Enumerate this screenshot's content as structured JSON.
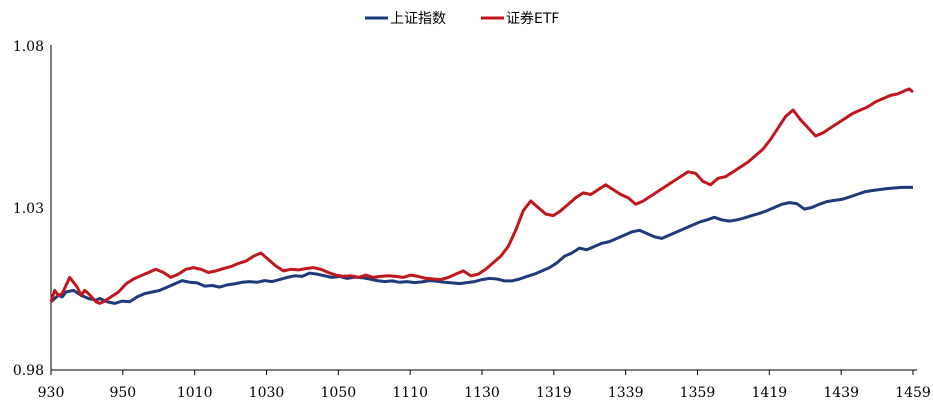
{
  "chart_data": {
    "type": "line",
    "title": "",
    "xlabel": "",
    "ylabel": "",
    "ylim": [
      0.98,
      1.08
    ],
    "y_ticks": [
      "0.98",
      "1.03",
      "1.08"
    ],
    "y_tick_values": [
      0.98,
      1.03,
      1.08
    ],
    "x_ticks": [
      "930",
      "950",
      "1010",
      "1030",
      "1050",
      "1110",
      "1130",
      "1319",
      "1339",
      "1359",
      "1419",
      "1439",
      "1459"
    ],
    "grid": false,
    "legend": "top-center",
    "series": [
      {
        "name": "上证指数",
        "color": "#1f3a7a",
        "values": [
          [
            0,
            1.001
          ],
          [
            2,
            1.003
          ],
          [
            3,
            1.0025
          ],
          [
            4,
            1.004
          ],
          [
            6,
            1.0045
          ],
          [
            8,
            1.003
          ],
          [
            10,
            1.002
          ],
          [
            12,
            1.0015
          ],
          [
            13,
            1.002
          ],
          [
            15,
            1.001
          ],
          [
            17,
            1.0005
          ],
          [
            19,
            1.0012
          ],
          [
            21,
            1.001
          ],
          [
            23,
            1.0025
          ],
          [
            25,
            1.0035
          ],
          [
            27,
            1.004
          ],
          [
            29,
            1.0045
          ],
          [
            31,
            1.0055
          ],
          [
            33,
            1.0065
          ],
          [
            35,
            1.0075
          ],
          [
            37,
            1.007
          ],
          [
            39,
            1.0068
          ],
          [
            41,
            1.0058
          ],
          [
            43,
            1.006
          ],
          [
            45,
            1.0055
          ],
          [
            47,
            1.0062
          ],
          [
            49,
            1.0065
          ],
          [
            51,
            1.007
          ],
          [
            53,
            1.0072
          ],
          [
            55,
            1.007
          ],
          [
            57,
            1.0075
          ],
          [
            59,
            1.0072
          ],
          [
            61,
            1.0078
          ],
          [
            63,
            1.0085
          ],
          [
            65,
            1.009
          ],
          [
            67,
            1.0088
          ],
          [
            69,
            1.0098
          ],
          [
            71,
            1.0095
          ],
          [
            73,
            1.009
          ],
          [
            75,
            1.0085
          ],
          [
            77,
            1.0088
          ],
          [
            79,
            1.0082
          ],
          [
            81,
            1.0086
          ],
          [
            83,
            1.0084
          ],
          [
            85,
            1.008
          ],
          [
            87,
            1.0075
          ],
          [
            89,
            1.0072
          ],
          [
            91,
            1.0074
          ],
          [
            93,
            1.007
          ],
          [
            95,
            1.0072
          ],
          [
            97,
            1.0069
          ],
          [
            99,
            1.0071
          ],
          [
            101,
            1.0075
          ],
          [
            103,
            1.0073
          ],
          [
            105,
            1.007
          ],
          [
            107,
            1.0068
          ],
          [
            109,
            1.0066
          ],
          [
            111,
            1.0069
          ],
          [
            113,
            1.0072
          ],
          [
            115,
            1.0078
          ],
          [
            117,
            1.0082
          ],
          [
            119,
            1.008
          ],
          [
            121,
            1.0074
          ],
          [
            123,
            1.0074
          ],
          [
            125,
            1.008
          ],
          [
            127,
            1.0088
          ],
          [
            129,
            1.0095
          ],
          [
            131,
            1.0105
          ],
          [
            133,
            1.0115
          ],
          [
            135,
            1.013
          ],
          [
            137,
            1.015
          ],
          [
            139,
            1.016
          ],
          [
            141,
            1.0175
          ],
          [
            143,
            1.017
          ],
          [
            145,
            1.018
          ],
          [
            147,
            1.019
          ],
          [
            149,
            1.0195
          ],
          [
            151,
            1.0205
          ],
          [
            153,
            1.0215
          ],
          [
            155,
            1.0225
          ],
          [
            157,
            1.023
          ],
          [
            159,
            1.022
          ],
          [
            161,
            1.021
          ],
          [
            163,
            1.0205
          ],
          [
            165,
            1.0215
          ],
          [
            167,
            1.0225
          ],
          [
            169,
            1.0235
          ],
          [
            171,
            1.0245
          ],
          [
            173,
            1.0255
          ],
          [
            175,
            1.0262
          ],
          [
            177,
            1.027
          ],
          [
            179,
            1.0262
          ],
          [
            181,
            1.0258
          ],
          [
            183,
            1.0262
          ],
          [
            185,
            1.0268
          ],
          [
            187,
            1.0275
          ],
          [
            189,
            1.0282
          ],
          [
            191,
            1.029
          ],
          [
            193,
            1.03
          ],
          [
            195,
            1.031
          ],
          [
            197,
            1.0315
          ],
          [
            199,
            1.0312
          ],
          [
            201,
            1.0295
          ],
          [
            203,
            1.03
          ],
          [
            205,
            1.031
          ],
          [
            207,
            1.0318
          ],
          [
            209,
            1.0322
          ],
          [
            211,
            1.0325
          ],
          [
            213,
            1.0332
          ],
          [
            215,
            1.034
          ],
          [
            217,
            1.0348
          ],
          [
            219,
            1.0352
          ],
          [
            221,
            1.0355
          ],
          [
            223,
            1.0358
          ],
          [
            225,
            1.036
          ],
          [
            227,
            1.0362
          ],
          [
            229,
            1.0362
          ],
          [
            230,
            1.0362
          ]
        ]
      },
      {
        "name": "证券ETF",
        "color": "#c0161d",
        "values": [
          [
            0,
            1.001
          ],
          [
            1,
            1.0045
          ],
          [
            2,
            1.003
          ],
          [
            3,
            1.0035
          ],
          [
            4,
            1.006
          ],
          [
            5,
            1.0085
          ],
          [
            6,
            1.007
          ],
          [
            7,
            1.0055
          ],
          [
            8,
            1.003
          ],
          [
            9,
            1.0045
          ],
          [
            10,
            1.0035
          ],
          [
            12,
            1.001
          ],
          [
            13,
            1.0005
          ],
          [
            14,
            1.001
          ],
          [
            16,
            1.0025
          ],
          [
            18,
            1.004
          ],
          [
            20,
            1.0065
          ],
          [
            22,
            1.008
          ],
          [
            24,
            1.009
          ],
          [
            26,
            1.01
          ],
          [
            28,
            1.011
          ],
          [
            30,
            1.01
          ],
          [
            32,
            1.0085
          ],
          [
            34,
            1.0095
          ],
          [
            36,
            1.011
          ],
          [
            38,
            1.0115
          ],
          [
            40,
            1.011
          ],
          [
            42,
            1.01
          ],
          [
            44,
            1.0105
          ],
          [
            46,
            1.0112
          ],
          [
            48,
            1.0118
          ],
          [
            50,
            1.0128
          ],
          [
            52,
            1.0135
          ],
          [
            54,
            1.015
          ],
          [
            56,
            1.016
          ],
          [
            58,
            1.014
          ],
          [
            60,
            1.012
          ],
          [
            62,
            1.0105
          ],
          [
            64,
            1.011
          ],
          [
            66,
            1.0108
          ],
          [
            68,
            1.0112
          ],
          [
            70,
            1.0115
          ],
          [
            72,
            1.011
          ],
          [
            74,
            1.01
          ],
          [
            76,
            1.0092
          ],
          [
            78,
            1.0088
          ],
          [
            80,
            1.009
          ],
          [
            82,
            1.0085
          ],
          [
            84,
            1.0092
          ],
          [
            86,
            1.0085
          ],
          [
            88,
            1.0088
          ],
          [
            90,
            1.009
          ],
          [
            92,
            1.0088
          ],
          [
            94,
            1.0085
          ],
          [
            96,
            1.0092
          ],
          [
            98,
            1.0088
          ],
          [
            100,
            1.0082
          ],
          [
            102,
            1.008
          ],
          [
            104,
            1.0078
          ],
          [
            106,
            1.0085
          ],
          [
            108,
            1.0095
          ],
          [
            110,
            1.0105
          ],
          [
            112,
            1.009
          ],
          [
            114,
            1.0095
          ],
          [
            116,
            1.011
          ],
          [
            118,
            1.013
          ],
          [
            120,
            1.015
          ],
          [
            122,
            1.018
          ],
          [
            124,
            1.023
          ],
          [
            126,
            1.029
          ],
          [
            128,
            1.032
          ],
          [
            130,
            1.03
          ],
          [
            132,
            1.028
          ],
          [
            134,
            1.0275
          ],
          [
            136,
            1.029
          ],
          [
            138,
            1.031
          ],
          [
            140,
            1.033
          ],
          [
            142,
            1.0345
          ],
          [
            144,
            1.034
          ],
          [
            146,
            1.0355
          ],
          [
            148,
            1.037
          ],
          [
            150,
            1.0355
          ],
          [
            152,
            1.034
          ],
          [
            154,
            1.033
          ],
          [
            156,
            1.031
          ],
          [
            158,
            1.032
          ],
          [
            160,
            1.0335
          ],
          [
            162,
            1.035
          ],
          [
            164,
            1.0365
          ],
          [
            166,
            1.038
          ],
          [
            168,
            1.0395
          ],
          [
            170,
            1.041
          ],
          [
            172,
            1.0405
          ],
          [
            174,
            1.038
          ],
          [
            176,
            1.037
          ],
          [
            178,
            1.039
          ],
          [
            180,
            1.0395
          ],
          [
            182,
            1.041
          ],
          [
            184,
            1.0425
          ],
          [
            186,
            1.044
          ],
          [
            188,
            1.046
          ],
          [
            190,
            1.048
          ],
          [
            192,
            1.051
          ],
          [
            194,
            1.0545
          ],
          [
            196,
            1.058
          ],
          [
            198,
            1.06
          ],
          [
            200,
            1.057
          ],
          [
            202,
            1.0545
          ],
          [
            204,
            1.052
          ],
          [
            206,
            1.053
          ],
          [
            208,
            1.0545
          ],
          [
            210,
            1.056
          ],
          [
            212,
            1.0575
          ],
          [
            214,
            1.059
          ],
          [
            216,
            1.06
          ],
          [
            218,
            1.061
          ],
          [
            220,
            1.0625
          ],
          [
            222,
            1.0635
          ],
          [
            224,
            1.0645
          ],
          [
            226,
            1.065
          ],
          [
            228,
            1.066
          ],
          [
            229,
            1.0665
          ],
          [
            230,
            1.0655
          ]
        ]
      }
    ]
  }
}
